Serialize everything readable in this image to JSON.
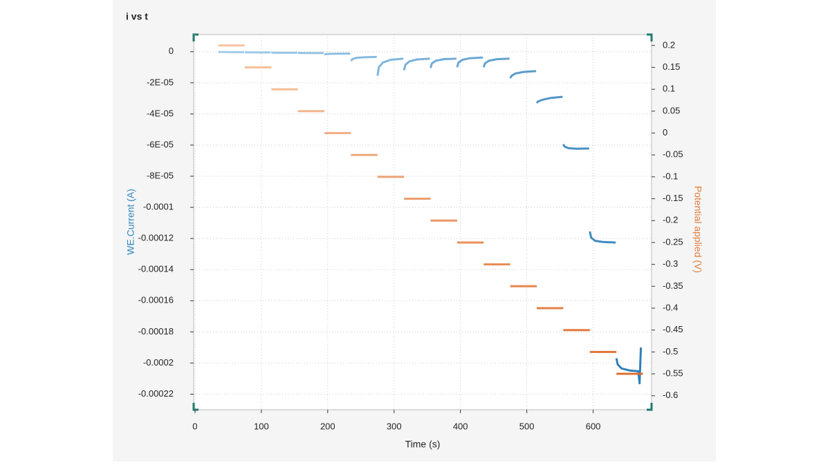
{
  "chart_data": {
    "type": "line",
    "title": "i vs t",
    "x_label": "Time (s)",
    "y_label": "WE.Current (A)",
    "y2_label": "Potential applied (V)",
    "xlim": [
      -2,
      688
    ],
    "xticks": [
      0,
      100,
      200,
      300,
      400,
      500,
      600
    ],
    "ylim": [
      -0.00023,
      1.1e-05
    ],
    "yticks": [
      0,
      {
        "value": -2e-05,
        "label": "-2E-05"
      },
      {
        "value": -4e-05,
        "label": "-4E-05"
      },
      {
        "value": -6e-05,
        "label": "-6E-05"
      },
      {
        "value": -8e-05,
        "label": "-8E-05"
      },
      -0.0001,
      -0.00012,
      -0.00014,
      -0.00016,
      -0.00018,
      -0.0002,
      -0.00022
    ],
    "y2lim": [
      -0.632,
      0.225
    ],
    "y2ticks": [
      0.2,
      0.15,
      0.1,
      0.05,
      0,
      -0.05,
      -0.1,
      -0.15,
      -0.2,
      -0.25,
      -0.3,
      -0.35,
      -0.4,
      -0.45,
      -0.5,
      -0.55,
      -0.6
    ],
    "grid": true,
    "series": [
      {
        "axis": "y",
        "colors": [
          "#a3cdea",
          "#9ecae8",
          "#98c6e6",
          "#93c3e4",
          "#8cbfe2",
          "#86bbe0",
          "#7fb6dd",
          "#78b1da",
          "#71acd7",
          "#6aa7d4",
          "#62a1d0",
          "#5a9bcc",
          "#5195c8",
          "#4890c4",
          "#3f8ac0",
          "#2f7fb9"
        ],
        "x": [
          35,
          37,
          43,
          55,
          74,
          null,
          75,
          77,
          83,
          95,
          114,
          null,
          115,
          117,
          123,
          135,
          154,
          null,
          155,
          157,
          163,
          175,
          194,
          null,
          195,
          197,
          203,
          215,
          234,
          null,
          235,
          237,
          243,
          255,
          274,
          null,
          275,
          277,
          283,
          295,
          314,
          null,
          315,
          317,
          323,
          335,
          354,
          null,
          355,
          357,
          363,
          375,
          394,
          null,
          395,
          397,
          403,
          415,
          434,
          null,
          435,
          437,
          443,
          455,
          474,
          null,
          475,
          477,
          483,
          495,
          514,
          null,
          515,
          517,
          523,
          535,
          554,
          null,
          555,
          557,
          563,
          575,
          594,
          null,
          595,
          597,
          603,
          615,
          634,
          null,
          635,
          637,
          643,
          655,
          668,
          670,
          672
        ],
        "values": [
          -1e-07,
          -2e-07,
          -2e-07,
          -3e-07,
          -3e-07,
          null,
          -3e-07,
          -4e-07,
          -4e-07,
          -5e-07,
          -5e-07,
          null,
          -6e-07,
          -6e-07,
          -7e-07,
          -7e-07,
          -7e-07,
          null,
          -8e-07,
          -8e-07,
          -9e-07,
          -9e-07,
          -9e-07,
          null,
          -1.9e-06,
          -1.6e-06,
          -1.4e-06,
          -1.3e-06,
          -1.2e-06,
          null,
          -6e-06,
          -4.8e-06,
          -4e-06,
          -3.6e-06,
          -3.4e-06,
          null,
          -1.55e-05,
          -1e-05,
          -7e-06,
          -5.2e-06,
          -4.5e-06,
          null,
          -1.2e-05,
          -8.5e-06,
          -6.2e-06,
          -5e-06,
          -4.5e-06,
          null,
          -1.05e-05,
          -7.5e-06,
          -5.8e-06,
          -4.8e-06,
          -4.5e-06,
          null,
          -1e-05,
          -7e-06,
          -5.2e-06,
          -4.2e-06,
          -3.8e-06,
          null,
          -1e-05,
          -7.5e-06,
          -5.8e-06,
          -4.8e-06,
          -4.5e-06,
          null,
          -1.7e-05,
          -1.55e-05,
          -1.4e-05,
          -1.3e-05,
          -1.25e-05,
          null,
          -3.3e-05,
          -3.2e-05,
          -3.1e-05,
          -2.98e-05,
          -2.9e-05,
          null,
          -5.95e-05,
          -6.1e-05,
          -6.2e-05,
          -6.23e-05,
          -6.22e-05,
          null,
          -0.0001155,
          -0.0001195,
          -0.0001215,
          -0.0001223,
          -0.0001226,
          null,
          -0.000197,
          -0.000201,
          -0.0002035,
          -0.0002048,
          -0.0002053,
          -0.000213,
          -0.00019
        ]
      },
      {
        "axis": "y2",
        "colors": [
          "#f6c4a2",
          "#f4bf9a",
          "#f3ba93",
          "#f2b48b",
          "#f0ae82",
          "#efa87a",
          "#eda272",
          "#ec9c6a",
          "#ea9662",
          "#e9905a",
          "#e78b53",
          "#e6854c",
          "#e47f45",
          "#e3793e",
          "#e17437",
          "#df6f31"
        ],
        "x": [
          35,
          75,
          null,
          75,
          115,
          null,
          115,
          155,
          null,
          155,
          195,
          null,
          195,
          235,
          null,
          235,
          275,
          null,
          275,
          315,
          null,
          315,
          355,
          null,
          355,
          395,
          null,
          395,
          435,
          null,
          435,
          475,
          null,
          475,
          515,
          null,
          515,
          555,
          null,
          555,
          595,
          null,
          595,
          635,
          null,
          635,
          675
        ],
        "values": [
          0.2,
          0.2,
          null,
          0.15,
          0.15,
          null,
          0.1,
          0.1,
          null,
          0.05,
          0.05,
          null,
          0,
          0,
          null,
          -0.05,
          -0.05,
          null,
          -0.1,
          -0.1,
          null,
          -0.15,
          -0.15,
          null,
          -0.2,
          -0.2,
          null,
          -0.25,
          -0.25,
          null,
          -0.3,
          -0.3,
          null,
          -0.35,
          -0.35,
          null,
          -0.4,
          -0.4,
          null,
          -0.45,
          -0.45,
          null,
          -0.5,
          -0.5,
          null,
          -0.55,
          -0.55
        ]
      }
    ]
  }
}
